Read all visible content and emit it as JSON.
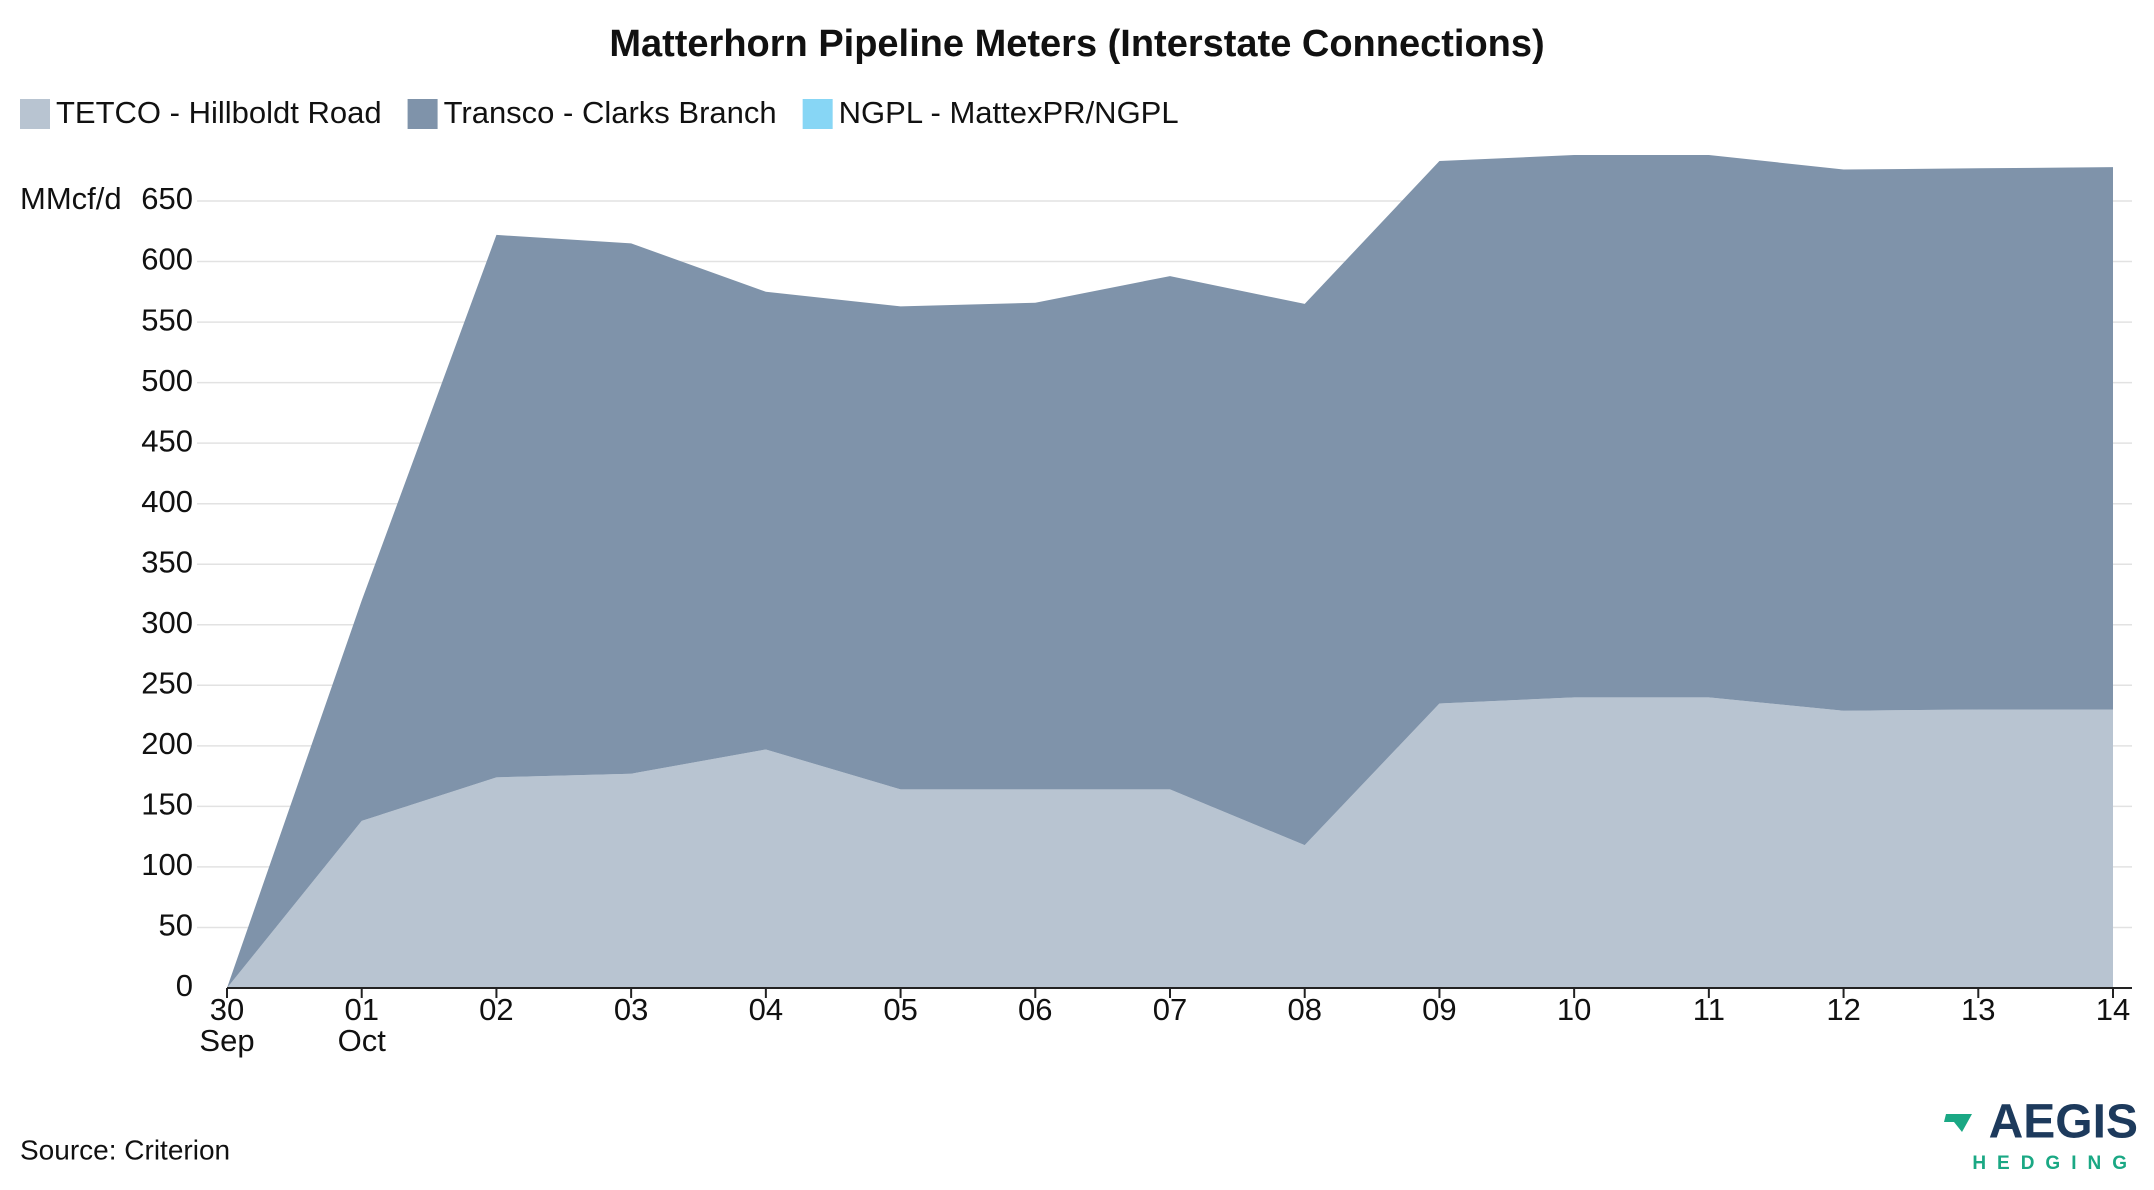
{
  "chart_data": {
    "type": "stacked-area",
    "title": "Matterhorn Pipeline Meters (Interstate Connections)",
    "y_label": "MMcf/d",
    "categories": [
      "30",
      "01",
      "02",
      "03",
      "04",
      "05",
      "06",
      "07",
      "08",
      "09",
      "10",
      "11",
      "12",
      "13",
      "14"
    ],
    "category_sublabels": [
      "Sep",
      "Oct",
      null,
      null,
      null,
      null,
      null,
      null,
      null,
      null,
      null,
      null,
      null,
      null,
      null
    ],
    "series": [
      {
        "name": "TETCO - Hillboldt Road",
        "color": "#b8c4d1",
        "values": [
          0,
          138,
          174,
          177,
          197,
          164,
          164,
          164,
          118,
          235,
          240,
          240,
          229,
          230,
          230
        ]
      },
      {
        "name": "Transco - Clarks Branch",
        "color": "#7f93aa",
        "values": [
          0,
          182,
          448,
          438,
          378,
          399,
          402,
          424,
          447,
          448,
          448,
          448,
          447,
          447,
          448
        ]
      },
      {
        "name": "NGPL - MattexPR/NGPL",
        "color": "#87d6f5",
        "values": [
          0,
          0,
          0,
          0,
          0,
          0,
          0,
          0,
          0,
          0,
          0,
          0,
          0,
          0,
          0
        ]
      }
    ],
    "ylim": [
      0,
      690
    ],
    "yticks": [
      0,
      50,
      100,
      150,
      200,
      250,
      300,
      350,
      400,
      450,
      500,
      550,
      600,
      650
    ],
    "grid": true,
    "legend": "top-left",
    "source": "Source: Criterion",
    "logo": {
      "name": "AEGIS",
      "tagline": "HEDGING"
    }
  }
}
